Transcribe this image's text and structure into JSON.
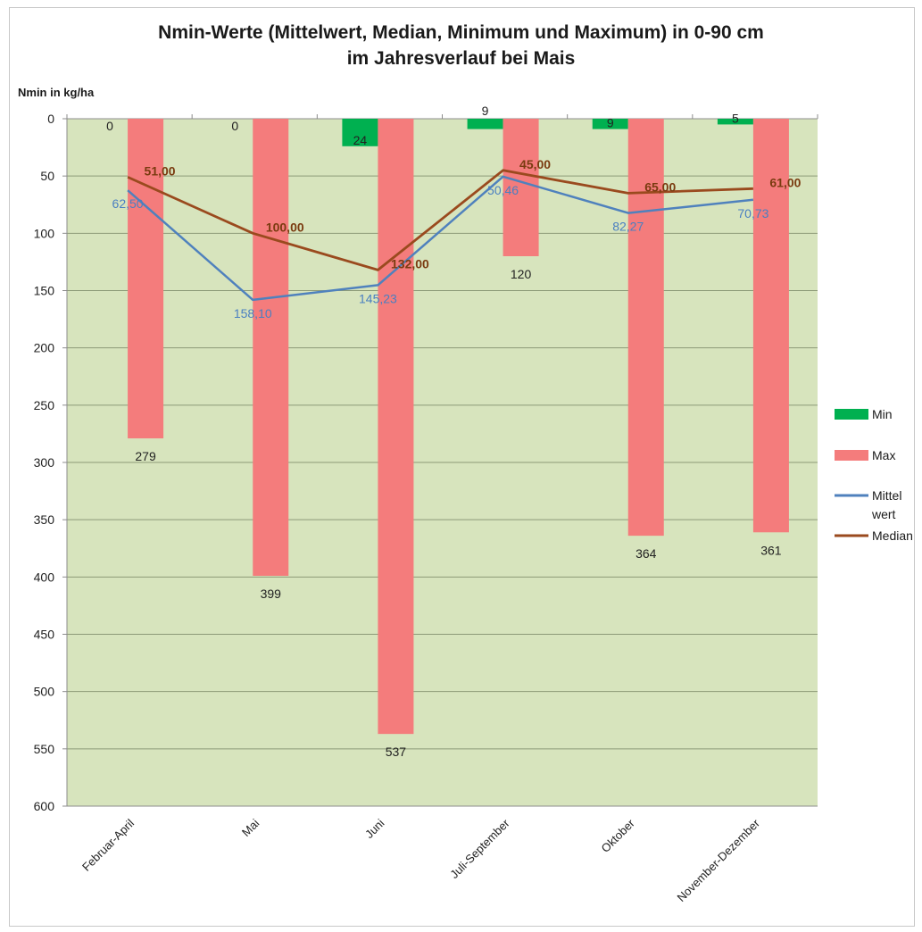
{
  "chart_data": {
    "type": "bar",
    "title_lines": [
      "Nmin-Werte (Mittelwert, Median, Minimum und Maximum) in 0-90 cm",
      "im Jahresverlauf bei Mais"
    ],
    "ylabel": "Nmin in kg/ha",
    "xlabel": "",
    "ylim": [
      0,
      600
    ],
    "y_axis_reversed": true,
    "y_ticks": [
      0,
      50,
      100,
      150,
      200,
      250,
      300,
      350,
      400,
      450,
      500,
      550,
      600
    ],
    "grid": true,
    "legend_position": "right",
    "plot_background": "#d7e4bd",
    "categories": [
      "Februar-April",
      "Mai",
      "Juni",
      "Juli-September",
      "Oktober",
      "November-Dezember"
    ],
    "series": [
      {
        "name": "Min",
        "kind": "bar",
        "color": "#00b050",
        "values": [
          0,
          0,
          24,
          9,
          9,
          5
        ],
        "labels": [
          "0",
          "0",
          "24",
          "9",
          "9",
          "5"
        ]
      },
      {
        "name": "Max",
        "kind": "bar",
        "color": "#f47c7c",
        "values": [
          279,
          399,
          537,
          120,
          364,
          361
        ],
        "labels": [
          "279",
          "399",
          "537",
          "120",
          "364",
          "361"
        ]
      },
      {
        "name": "Mittel wert",
        "legend_lines": [
          "Mittel",
          "wert"
        ],
        "kind": "line",
        "color": "#4f81bd",
        "values": [
          62.5,
          158.1,
          145.23,
          50.46,
          82.27,
          70.73
        ],
        "labels": [
          "62,50",
          "158,10",
          "145,23",
          "50,46",
          "82,27",
          "70,73"
        ]
      },
      {
        "name": "Median",
        "kind": "line",
        "color": "#9a4a1e",
        "values": [
          51,
          100,
          132,
          45,
          65,
          61
        ],
        "labels": [
          "51,00",
          "100,00",
          "132,00",
          "45,00",
          "65,00",
          "61,00"
        ]
      }
    ]
  }
}
